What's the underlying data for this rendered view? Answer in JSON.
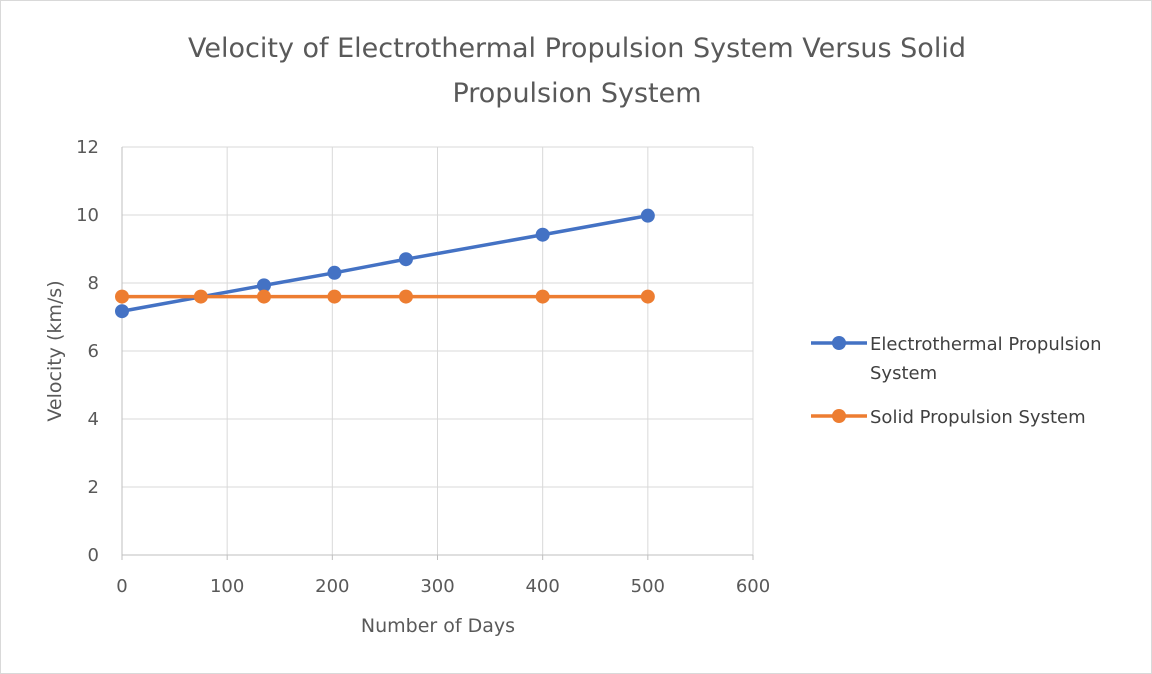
{
  "chart_data": {
    "type": "scatter",
    "title": [
      "Velocity of Electrothermal Propulsion System Versus Solid",
      "Propulsion System"
    ],
    "xlabel": "Number of Days",
    "ylabel": "Velocity (km/s)",
    "xlim": [
      0,
      600
    ],
    "ylim": [
      0,
      12
    ],
    "xticks": [
      "0",
      "100",
      "200",
      "300",
      "400",
      "500",
      "600"
    ],
    "yticks": [
      "0",
      "2",
      "4",
      "6",
      "8",
      "10",
      "12"
    ],
    "grid": true,
    "legend_position": "right",
    "series": [
      {
        "name": [
          "Electrothermal Propulsion",
          "System"
        ],
        "color": "#4472C4",
        "x": [
          0,
          135,
          202,
          270,
          400,
          500
        ],
        "y": [
          7.17,
          7.93,
          8.3,
          8.7,
          9.42,
          9.98
        ]
      },
      {
        "name": [
          "Solid Propulsion System"
        ],
        "color": "#ED7D31",
        "x": [
          0,
          75,
          135,
          202,
          270,
          400,
          500
        ],
        "y": [
          7.6,
          7.6,
          7.6,
          7.6,
          7.6,
          7.6,
          7.6
        ]
      }
    ]
  }
}
